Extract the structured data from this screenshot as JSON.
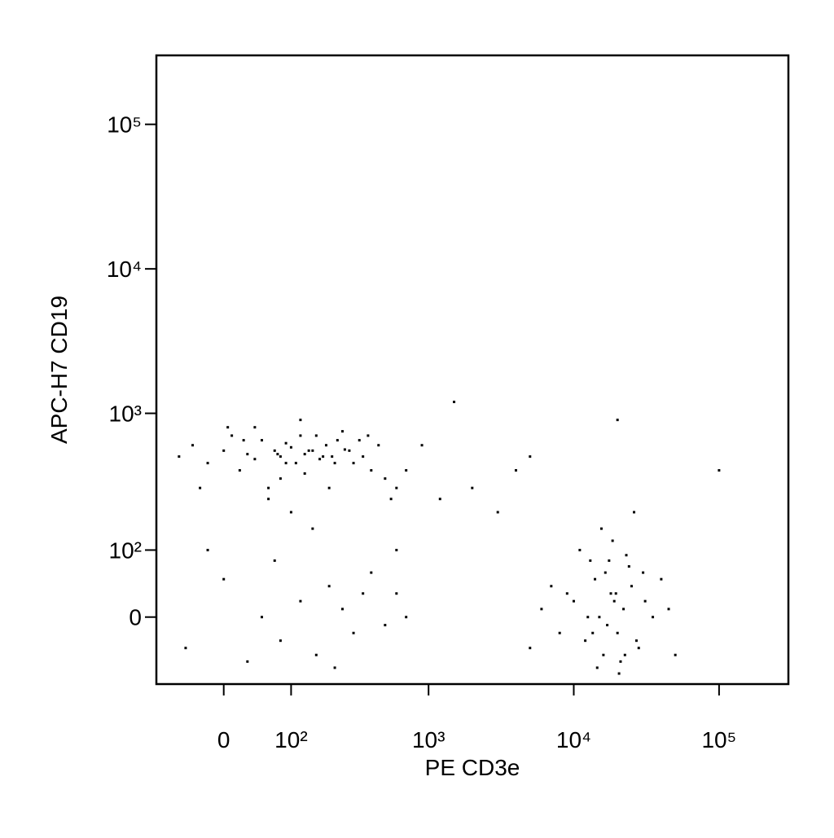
{
  "chart_data": {
    "type": "scatter",
    "x_label": "PE CD3e",
    "y_label": "APC-H7 CD19",
    "xscale": "biexponential",
    "yscale": "biexponential",
    "xlim": [
      -100,
      300000
    ],
    "ylim": [
      -100,
      300000
    ],
    "xticks": [
      0,
      {
        "value": 100,
        "label": "10²"
      },
      {
        "value": 1000,
        "label": "10³"
      },
      {
        "value": 10000,
        "label": "10⁴"
      },
      {
        "value": 100000,
        "label": "10⁵"
      }
    ],
    "yticks": [
      0,
      {
        "value": 100,
        "label": "10²"
      },
      {
        "value": 1000,
        "label": "10³"
      },
      {
        "value": 10000,
        "label": "10⁴"
      },
      {
        "value": 100000,
        "label": "10⁵"
      }
    ],
    "color": "#000000",
    "x": [
      -60,
      -40,
      -20,
      0,
      10,
      20,
      30,
      40,
      50,
      60,
      70,
      80,
      90,
      100,
      110,
      120,
      130,
      150,
      170,
      190,
      210,
      230,
      260,
      300,
      350,
      400,
      450,
      500,
      600,
      700,
      40,
      60,
      80,
      120,
      160,
      200,
      250,
      90,
      140,
      180,
      -30,
      5,
      25,
      75,
      130,
      220,
      280,
      330,
      380,
      550,
      10000,
      12000,
      14000,
      15000,
      16000,
      18000,
      20000,
      22000,
      25000,
      28000,
      30000,
      35000,
      13000,
      17000,
      19000,
      21000,
      24000,
      11000,
      9000,
      8000,
      6000,
      5000,
      40000,
      50000,
      15500,
      18500,
      23000,
      26000,
      14500,
      20500,
      12500,
      16500,
      27000,
      31000,
      7000,
      45000,
      13500,
      19500,
      22500,
      17500,
      50,
      80,
      120,
      160,
      200,
      250,
      300,
      400,
      500,
      600,
      700,
      -50,
      -20,
      0,
      30,
      70,
      100,
      150,
      220,
      350,
      2000,
      3000,
      4000,
      600,
      1500,
      5000,
      900,
      1200,
      20000,
      100000
    ],
    "y": [
      500,
      600,
      450,
      550,
      700,
      400,
      520,
      480,
      650,
      300,
      550,
      500,
      620,
      580,
      450,
      700,
      520,
      550,
      480,
      600,
      500,
      650,
      560,
      450,
      500,
      400,
      600,
      350,
      300,
      400,
      800,
      250,
      350,
      900,
      700,
      300,
      750,
      450,
      550,
      500,
      300,
      800,
      650,
      520,
      380,
      450,
      550,
      650,
      700,
      250,
      20,
      -30,
      50,
      0,
      -50,
      30,
      -20,
      10,
      40,
      -40,
      60,
      0,
      80,
      -10,
      20,
      -60,
      70,
      100,
      30,
      -20,
      10,
      -40,
      50,
      -50,
      150,
      120,
      90,
      200,
      -70,
      -80,
      0,
      60,
      -30,
      20,
      40,
      10,
      -20,
      30,
      -50,
      80,
      0,
      -30,
      20,
      -50,
      40,
      10,
      -20,
      60,
      -10,
      30,
      0,
      -40,
      100,
      50,
      -60,
      80,
      200,
      150,
      -70,
      30,
      300,
      200,
      400,
      100,
      1200,
      500,
      600,
      250,
      900,
      400
    ]
  }
}
